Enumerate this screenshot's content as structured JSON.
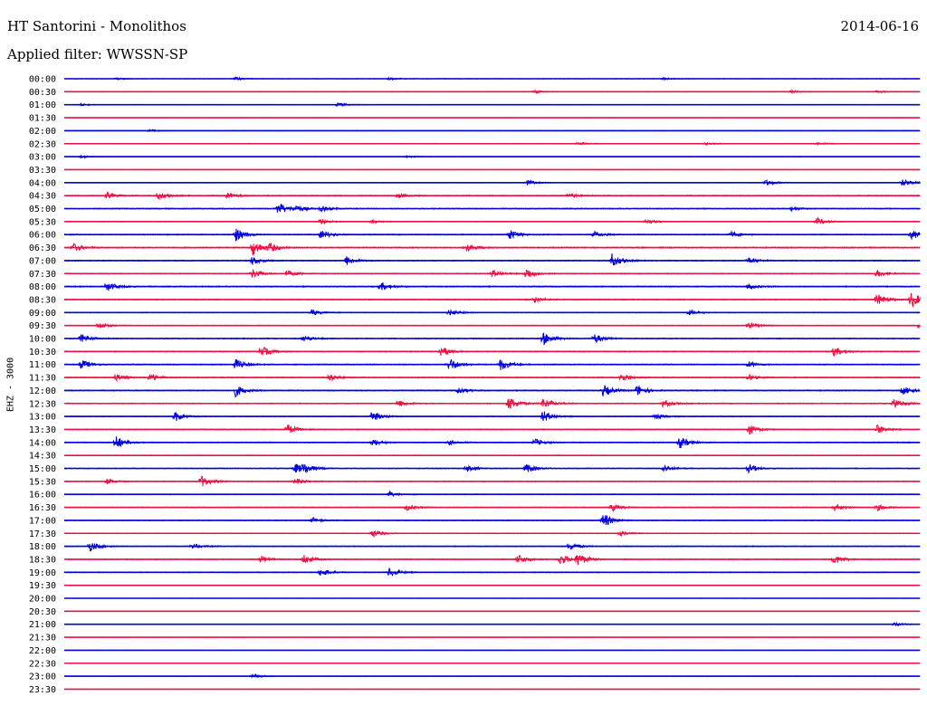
{
  "header": {
    "station": "HT Santorini - Monolithos",
    "date": "2014-06-16",
    "filter": "Applied filter: WWSSN-SP"
  },
  "channel_label": "EHZ - 3000",
  "colors": {
    "even_hour": "#0000dd",
    "half_hour": "#ee1144"
  },
  "chart_data": {
    "type": "line",
    "title": "HT Santorini - Monolithos",
    "subtitle": "Applied filter: WWSSN-SP",
    "ylabel": "EHZ - 3000",
    "row_labels": [
      "00:00",
      "00:30",
      "01:00",
      "01:30",
      "02:00",
      "02:30",
      "03:00",
      "03:30",
      "04:00",
      "04:30",
      "05:00",
      "05:30",
      "06:00",
      "06:30",
      "07:00",
      "07:30",
      "08:00",
      "08:30",
      "09:00",
      "09:30",
      "10:00",
      "10:30",
      "11:00",
      "11:30",
      "12:00",
      "12:30",
      "13:00",
      "13:30",
      "14:00",
      "14:30",
      "15:00",
      "15:30",
      "16:00",
      "16:30",
      "17:00",
      "17:30",
      "18:00",
      "18:30",
      "19:00",
      "19:30",
      "20:00",
      "20:30",
      "21:00",
      "21:30",
      "22:00",
      "22:30",
      "23:00",
      "23:30"
    ],
    "trace_minutes": 30,
    "noise_level": [
      0.25,
      0.3,
      0.25,
      0.15,
      0.25,
      0.3,
      0.25,
      0.2,
      0.3,
      0.5,
      0.5,
      0.35,
      0.5,
      0.6,
      0.5,
      0.45,
      0.55,
      0.5,
      0.4,
      0.4,
      0.5,
      0.5,
      0.55,
      0.45,
      0.55,
      0.5,
      0.4,
      0.45,
      0.5,
      0.35,
      0.45,
      0.45,
      0.4,
      0.4,
      0.4,
      0.4,
      0.45,
      0.5,
      0.45,
      0.2,
      0.15,
      0.15,
      0.25,
      0.1,
      0.1,
      0.2,
      0.2,
      0.12
    ],
    "events": [
      [
        [
          0.06,
          1.2
        ],
        [
          0.2,
          1.5
        ],
        [
          0.38,
          1.2
        ],
        [
          0.7,
          1.2
        ]
      ],
      [
        [
          0.55,
          1.4
        ],
        [
          0.85,
          1.5
        ],
        [
          0.95,
          1.2
        ]
      ],
      [
        [
          0.02,
          1.2
        ],
        [
          0.32,
          2.2
        ]
      ],
      [],
      [
        [
          0.1,
          1.2
        ]
      ],
      [
        [
          0.6,
          1.6
        ],
        [
          0.75,
          1.2
        ],
        [
          0.88,
          1.6
        ]
      ],
      [
        [
          0.02,
          1.4
        ],
        [
          0.4,
          1.2
        ]
      ],
      [],
      [
        [
          0.54,
          2.8
        ],
        [
          0.82,
          3.2
        ],
        [
          0.98,
          4.2
        ]
      ],
      [
        [
          0.05,
          3.0
        ],
        [
          0.11,
          4.2
        ],
        [
          0.19,
          3.5
        ],
        [
          0.39,
          2.5
        ],
        [
          0.59,
          2.5
        ]
      ],
      [
        [
          0.25,
          7.0
        ],
        [
          0.27,
          3.5
        ],
        [
          0.3,
          3.0
        ],
        [
          0.85,
          2.0
        ]
      ],
      [
        [
          0.3,
          3.0
        ],
        [
          0.36,
          2.0
        ],
        [
          0.68,
          3.0
        ],
        [
          0.88,
          4.0
        ]
      ],
      [
        [
          0.2,
          7.5
        ],
        [
          0.3,
          5.0
        ],
        [
          0.52,
          5.5
        ],
        [
          0.62,
          3.2
        ],
        [
          0.78,
          3.2
        ],
        [
          0.99,
          5.5
        ]
      ],
      [
        [
          0.01,
          4.5
        ],
        [
          0.22,
          9.0
        ],
        [
          0.24,
          4.5
        ],
        [
          0.47,
          4.2
        ]
      ],
      [
        [
          0.22,
          4.5
        ],
        [
          0.33,
          5.0
        ],
        [
          0.64,
          7.5
        ],
        [
          0.8,
          3.5
        ]
      ],
      [
        [
          0.22,
          5.0
        ],
        [
          0.26,
          3.5
        ],
        [
          0.5,
          4.5
        ],
        [
          0.54,
          6.5
        ],
        [
          0.95,
          4.0
        ]
      ],
      [
        [
          0.05,
          5.0
        ],
        [
          0.37,
          4.5
        ],
        [
          0.8,
          2.5
        ]
      ],
      [
        [
          0.55,
          3.0
        ],
        [
          0.95,
          6.5
        ],
        [
          0.99,
          9.0
        ]
      ],
      [
        [
          0.29,
          3.0
        ],
        [
          0.45,
          3.5
        ],
        [
          0.73,
          2.5
        ]
      ],
      [
        [
          0.04,
          4.0
        ],
        [
          0.8,
          3.2
        ],
        [
          1.0,
          4.8
        ]
      ],
      [
        [
          0.02,
          4.5
        ],
        [
          0.28,
          3.5
        ],
        [
          0.56,
          7.0
        ],
        [
          0.62,
          5.0
        ]
      ],
      [
        [
          0.23,
          6.5
        ],
        [
          0.44,
          6.0
        ],
        [
          0.9,
          5.0
        ]
      ],
      [
        [
          0.02,
          5.0
        ],
        [
          0.2,
          5.5
        ],
        [
          0.45,
          7.5
        ],
        [
          0.51,
          6.5
        ],
        [
          0.8,
          3.0
        ]
      ],
      [
        [
          0.06,
          4.0
        ],
        [
          0.1,
          4.5
        ],
        [
          0.31,
          4.0
        ],
        [
          0.65,
          5.5
        ],
        [
          0.8,
          3.2
        ]
      ],
      [
        [
          0.2,
          6.5
        ],
        [
          0.46,
          3.5
        ],
        [
          0.63,
          6.5
        ],
        [
          0.67,
          5.5
        ],
        [
          0.98,
          4.5
        ]
      ],
      [
        [
          0.39,
          4.0
        ],
        [
          0.52,
          7.5
        ],
        [
          0.56,
          6.0
        ],
        [
          0.7,
          5.0
        ],
        [
          0.97,
          5.5
        ]
      ],
      [
        [
          0.13,
          5.5
        ],
        [
          0.36,
          6.0
        ],
        [
          0.56,
          6.5
        ],
        [
          0.69,
          3.0
        ]
      ],
      [
        [
          0.26,
          6.5
        ],
        [
          0.8,
          5.5
        ],
        [
          0.95,
          5.5
        ]
      ],
      [
        [
          0.06,
          7.5
        ],
        [
          0.36,
          4.0
        ],
        [
          0.45,
          2.5
        ],
        [
          0.55,
          4.0
        ],
        [
          0.72,
          6.5
        ]
      ],
      [],
      [
        [
          0.27,
          5.5
        ],
        [
          0.28,
          5.0
        ],
        [
          0.47,
          3.5
        ],
        [
          0.54,
          5.0
        ],
        [
          0.7,
          4.0
        ],
        [
          0.8,
          4.5
        ]
      ],
      [
        [
          0.05,
          3.0
        ],
        [
          0.16,
          6.5
        ],
        [
          0.27,
          3.0
        ]
      ],
      [
        [
          0.38,
          3.0
        ]
      ],
      [
        [
          0.4,
          3.5
        ],
        [
          0.64,
          4.0
        ],
        [
          0.9,
          4.0
        ],
        [
          0.95,
          3.5
        ]
      ],
      [
        [
          0.29,
          3.0
        ],
        [
          0.63,
          8.0
        ]
      ],
      [
        [
          0.36,
          4.0
        ],
        [
          0.65,
          2.5
        ]
      ],
      [
        [
          0.03,
          5.5
        ],
        [
          0.15,
          3.0
        ],
        [
          0.59,
          4.5
        ]
      ],
      [
        [
          0.23,
          4.0
        ],
        [
          0.28,
          5.0
        ],
        [
          0.53,
          5.5
        ],
        [
          0.58,
          6.0
        ],
        [
          0.6,
          7.0
        ],
        [
          0.9,
          5.0
        ]
      ],
      [
        [
          0.3,
          4.5
        ],
        [
          0.38,
          5.0
        ]
      ],
      [],
      [],
      [],
      [
        [
          0.97,
          2.0
        ]
      ],
      [],
      [],
      [],
      [
        [
          0.22,
          2.5
        ]
      ],
      []
    ]
  }
}
